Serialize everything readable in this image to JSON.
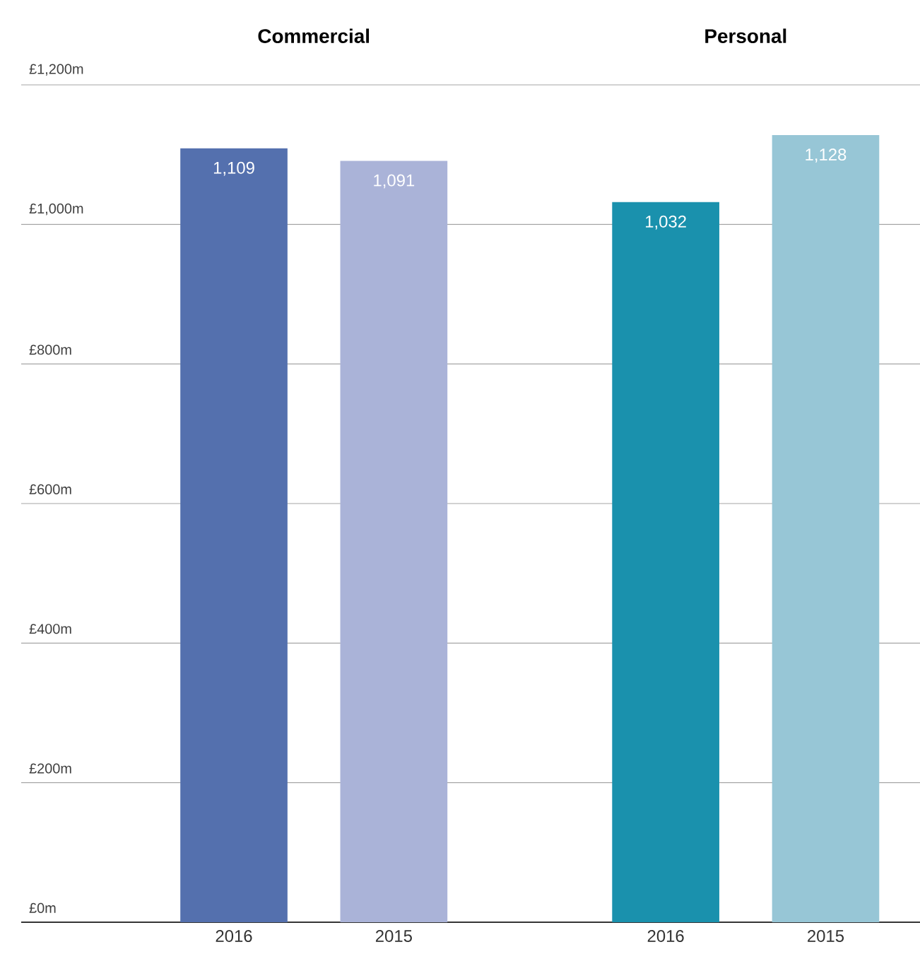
{
  "chart_data": {
    "type": "bar",
    "categories": [
      "2016",
      "2015",
      "2016",
      "2015"
    ],
    "values": [
      1109,
      1091,
      1032,
      1128
    ],
    "value_labels": [
      "1,109",
      "1,091",
      "1,032",
      "1,128"
    ],
    "colors": [
      "#5470ae",
      "#aab3d8",
      "#1a91ad",
      "#97c6d6"
    ],
    "annotations": [
      "Commercial",
      "Personal"
    ],
    "ylim": [
      0,
      1200
    ],
    "yticks": [
      {
        "value": 0,
        "label": "£0m"
      },
      {
        "value": 200,
        "label": "£200m"
      },
      {
        "value": 400,
        "label": "£400m"
      },
      {
        "value": 600,
        "label": "£600m"
      },
      {
        "value": 800,
        "label": "£800m"
      },
      {
        "value": 1000,
        "label": "£1,000m"
      },
      {
        "value": 1200,
        "label": "£1,200m"
      }
    ],
    "grid": "y"
  }
}
